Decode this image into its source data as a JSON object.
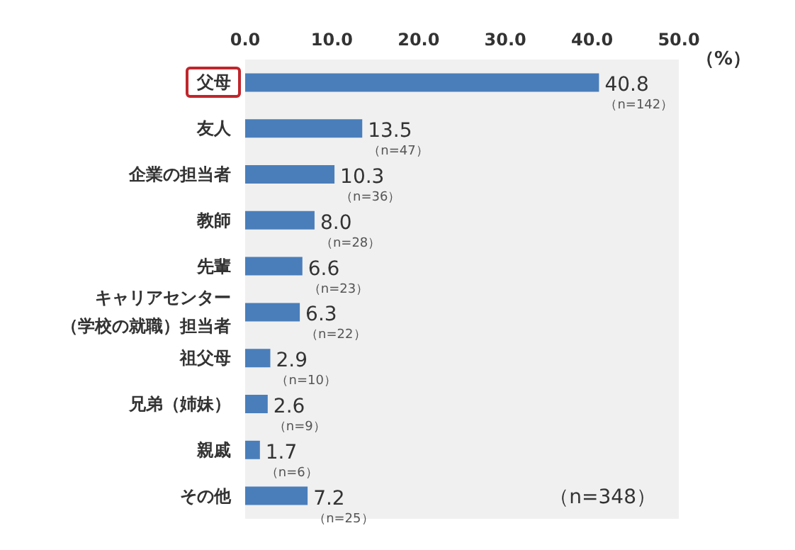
{
  "chart_data": {
    "type": "bar",
    "orientation": "horizontal",
    "xlabel": "（%）",
    "categories": [
      "父母",
      "友人",
      "企業の担当者",
      "教師",
      "先輩",
      "キャリアセンター（学校の就職）担当者",
      "祖父母",
      "兄弟（姉妹）",
      "親戚",
      "その他"
    ],
    "values": [
      40.8,
      13.5,
      10.3,
      8.0,
      6.6,
      6.3,
      2.9,
      2.6,
      1.7,
      7.2
    ],
    "value_labels": [
      "40.8\n（n=142）",
      "13.5\n（n=47）",
      "10.3\n（n=36）",
      "8.0\n（n=28）",
      "6.6\n（n=23）",
      "6.3\n（n=22）",
      "2.9\n（n=10）",
      "2.6\n（n=9）",
      "1.7\n（n=6）",
      "7.2\n（n=25）"
    ],
    "color": "#4a7ebb",
    "xlim": [
      0,
      50
    ],
    "xticks": [
      {
        "value": 0,
        "label": "0.0"
      },
      {
        "value": 10,
        "label": "10.0"
      },
      {
        "value": 20,
        "label": "20.0"
      },
      {
        "value": 30,
        "label": "30.0"
      },
      {
        "value": 40,
        "label": "40.0"
      },
      {
        "value": 50,
        "label": "50.0"
      }
    ],
    "annotations": [
      "（n=348）"
    ]
  }
}
